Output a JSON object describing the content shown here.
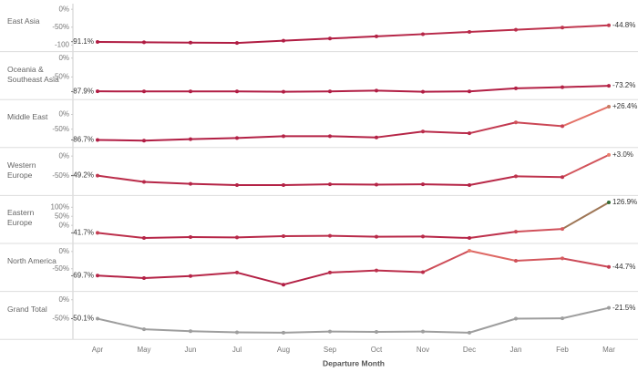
{
  "chart_data": {
    "type": "line",
    "xlabel": "Departure Month",
    "categories": [
      "Apr",
      "May",
      "Jun",
      "Jul",
      "Aug",
      "Sep",
      "Oct",
      "Nov",
      "Dec",
      "Jan",
      "Feb",
      "Mar"
    ],
    "color_scale": {
      "domain": [
        -100,
        0,
        130
      ],
      "colors": [
        "#b01c43",
        "#ec7f6e",
        "#2f6a34"
      ]
    },
    "rows": [
      {
        "name": "East Asia",
        "ylim": [
          -108,
          3
        ],
        "yticks": [
          {
            "value": 0,
            "label": "0%"
          },
          {
            "value": -50,
            "label": "-50%"
          },
          -100
        ],
        "values": [
          -91.1,
          -92,
          -93,
          -94,
          -87.85,
          -81.7,
          -75.55,
          -69.4,
          -63.25,
          -57.1,
          -50.95,
          -44.8
        ],
        "value_labels": [
          "-91.1%",
          null,
          null,
          null,
          null,
          null,
          null,
          null,
          null,
          null,
          null,
          "-44.8%"
        ]
      },
      {
        "name": "Oceania & Southeast Asia",
        "ylim": [
          -100,
          5
        ],
        "yticks": [
          {
            "value": 0,
            "label": "0%"
          },
          {
            "value": -50,
            "label": "-50%"
          }
        ],
        "values": [
          -87.9,
          -88,
          -88,
          -88,
          -89,
          -88,
          -86,
          -89,
          -88,
          -80,
          -77,
          -73.2
        ],
        "value_labels": [
          "-87.9%",
          null,
          null,
          null,
          null,
          null,
          null,
          null,
          null,
          null,
          null,
          "-73.2%"
        ]
      },
      {
        "name": "Middle East",
        "ylim": [
          -100,
          35
        ],
        "yticks": [
          {
            "value": 0,
            "label": "0%"
          },
          {
            "value": -50,
            "label": "-50%"
          }
        ],
        "values": [
          -86.7,
          -89,
          -84,
          -80,
          -74,
          -74,
          -78,
          -58,
          -64,
          -27,
          -40,
          26.4
        ],
        "value_labels": [
          "-86.7%",
          null,
          null,
          null,
          null,
          null,
          null,
          null,
          null,
          null,
          null,
          "+26.4%"
        ]
      },
      {
        "name": "Western Europe",
        "ylim": [
          -90,
          10
        ],
        "yticks": [
          {
            "value": 0,
            "label": "0%"
          },
          {
            "value": -50,
            "label": "-50%"
          }
        ],
        "values": [
          -49.2,
          -65,
          -70,
          -73,
          -73,
          -71,
          -72,
          -71,
          -73,
          -51,
          -53,
          3.0
        ],
        "value_labels": [
          "-49.2%",
          null,
          null,
          null,
          null,
          null,
          null,
          null,
          null,
          null,
          null,
          "+3.0%"
        ]
      },
      {
        "name": "Eastern Europe",
        "ylim": [
          -80,
          140
        ],
        "yticks": [
          {
            "value": 100,
            "label": "100%"
          },
          {
            "value": 50,
            "label": "50%"
          },
          {
            "value": 0,
            "label": "0%"
          }
        ],
        "values": [
          -41.7,
          -70,
          -65,
          -67,
          -60,
          -58,
          -63,
          -62,
          -70,
          -35,
          -20,
          126.9
        ],
        "value_labels": [
          "-41.7%",
          null,
          null,
          null,
          null,
          null,
          null,
          null,
          null,
          null,
          null,
          "126.9%"
        ]
      },
      {
        "name": "North America",
        "ylim": [
          -105,
          10
        ],
        "yticks": [
          {
            "value": 0,
            "label": "0%"
          },
          {
            "value": -50,
            "label": "-50%"
          }
        ],
        "values": [
          -69.7,
          -77,
          -71,
          -61,
          -96,
          -61,
          -55,
          -60,
          2,
          -27,
          -20,
          -44.7
        ],
        "value_labels": [
          "-69.7%",
          null,
          null,
          null,
          null,
          null,
          null,
          null,
          null,
          null,
          null,
          "-44.7%"
        ]
      },
      {
        "name": "Grand Total",
        "ylim": [
          -95,
          10
        ],
        "color": "#9e9e9e",
        "yticks": [
          {
            "value": 0,
            "label": "0%"
          },
          {
            "value": -50,
            "label": "-50%"
          }
        ],
        "values": [
          -50.1,
          -78,
          -83,
          -86,
          -87,
          -84,
          -85,
          -84,
          -87,
          -50,
          -49,
          -21.5
        ],
        "value_labels": [
          "-50.1%",
          null,
          null,
          null,
          null,
          null,
          null,
          null,
          null,
          null,
          null,
          "-21.5%"
        ]
      }
    ]
  }
}
